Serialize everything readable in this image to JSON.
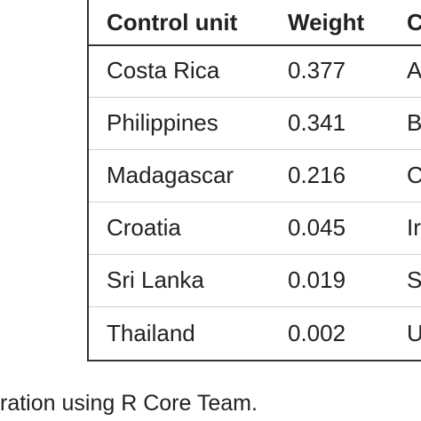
{
  "table": {
    "headers": [
      "Control unit",
      "Weight",
      "C"
    ],
    "rows": [
      [
        "Costa Rica",
        "0.377",
        "A"
      ],
      [
        "Philippines",
        "0.341",
        "B"
      ],
      [
        "Madagascar",
        "0.216",
        "C"
      ],
      [
        "Croatia",
        "0.045",
        "Ir"
      ],
      [
        "Sri Lanka",
        "0.019",
        "S"
      ],
      [
        "Thailand",
        "0.002",
        "U"
      ]
    ]
  },
  "caption": "ration using R Core Team."
}
